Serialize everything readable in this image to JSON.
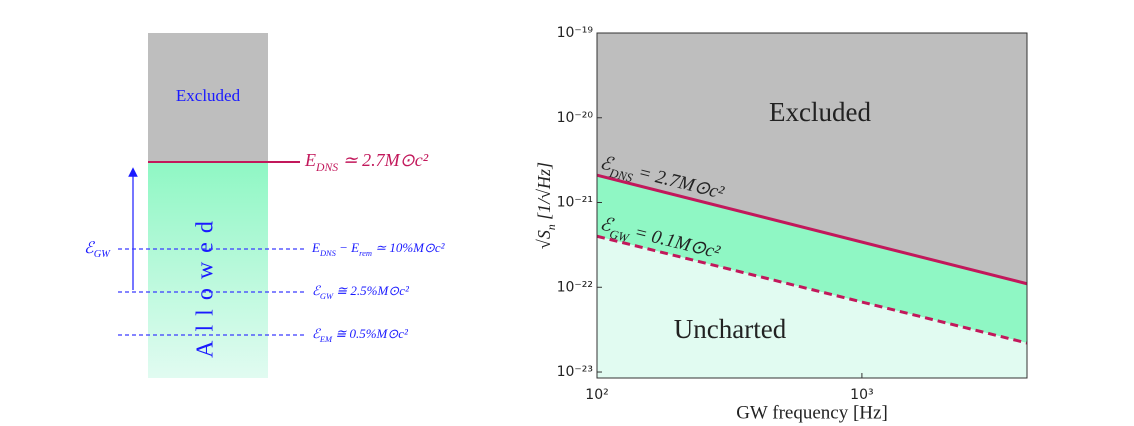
{
  "diagram": {
    "excluded": "Excluded",
    "allowed": "Allowed",
    "energy_axis": [
      "ℰ",
      "GW"
    ],
    "threshold": [
      "E",
      "DNS",
      " ≃ 2.7M⊙c²"
    ],
    "levels": [
      [
        "E",
        "DNS",
        " − E",
        "rem",
        " ≃ 10%M⊙c²"
      ],
      [
        "ℰ",
        "GW",
        " ≅ 2.5%M⊙c²"
      ],
      [
        "ℰ",
        "EM",
        " ≅ 0.5%M⊙c²"
      ]
    ]
  },
  "chart_data": {
    "type": "line",
    "xlabel": "GW frequency [Hz]",
    "ylabel": [
      "√S",
      "n",
      " [1/√Hz]"
    ],
    "x": [
      100,
      4200
    ],
    "series": [
      {
        "label": [
          "ℰ",
          "DNS",
          " = 2.7M⊙c²"
        ],
        "color": "#c2185b",
        "dashed": false,
        "values": [
          2.1e-21,
          1.1e-22
        ]
      },
      {
        "label": [
          "ℰ",
          "GW",
          " = 0.1M⊙c²"
        ],
        "color": "#c2185b",
        "dashed": true,
        "values": [
          4e-22,
          2.2e-23
        ]
      }
    ],
    "regions": [
      {
        "label": "Excluded",
        "color": "#bebebe"
      },
      {
        "color": "#8ff7c4"
      },
      {
        "label": "Uncharted",
        "color": "#e1fbf1"
      }
    ],
    "log_x": true,
    "log_y": true,
    "xlim": [
      100,
      4200
    ],
    "ylim": [
      8.5e-24,
      1e-19
    ],
    "xticks": [
      {
        "value": 100,
        "label": "10²"
      },
      {
        "value": 1000,
        "label": "10³"
      }
    ],
    "yticks": [
      {
        "value": 1e-23,
        "label": "10⁻²³"
      },
      {
        "value": 1e-22,
        "label": "10⁻²²"
      },
      {
        "value": 1e-21,
        "label": "10⁻²¹"
      },
      {
        "value": 1e-20,
        "label": "10⁻²⁰"
      },
      {
        "value": 1e-19,
        "label": "10⁻¹⁹"
      }
    ]
  }
}
